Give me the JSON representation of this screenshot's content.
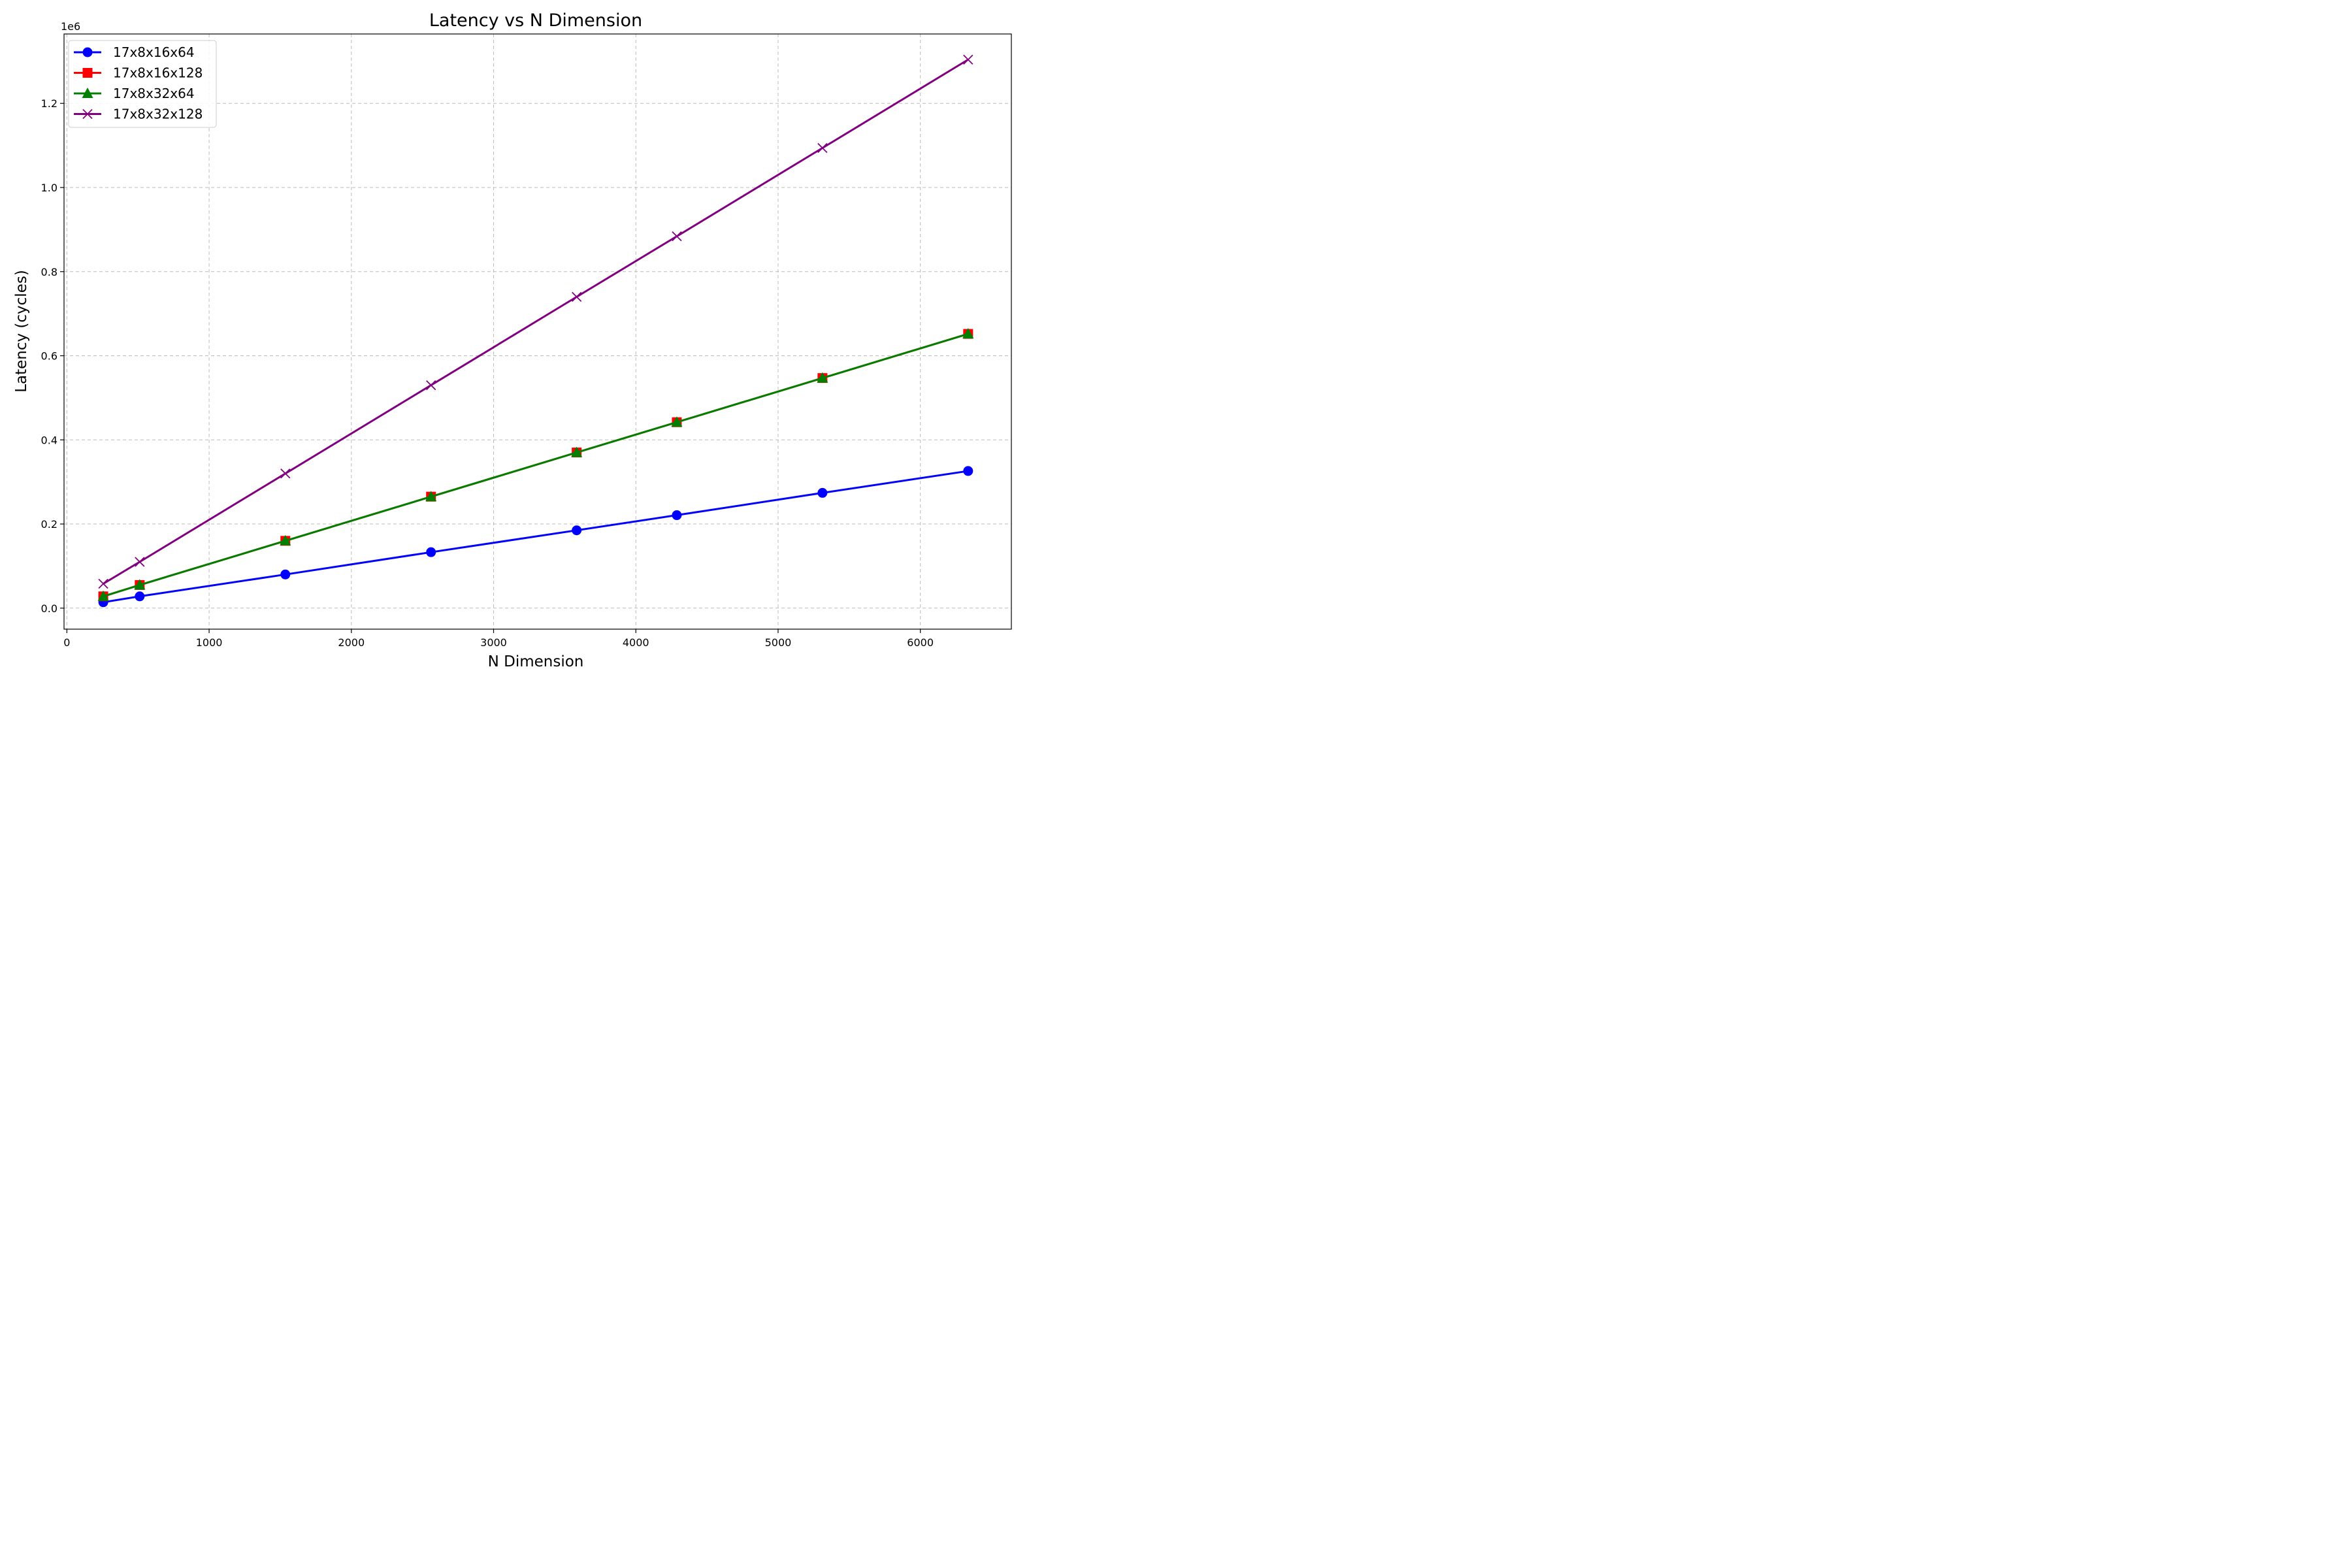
{
  "chart_data": {
    "type": "line",
    "title": "Latency vs N Dimension",
    "xlabel": "N Dimension",
    "ylabel": "Latency (cycles)",
    "y_offset_label": "1e6",
    "xlim": [
      -20,
      6640
    ],
    "ylim": [
      -50000,
      1365000
    ],
    "xticks": [
      0,
      1000,
      2000,
      3000,
      4000,
      5000,
      6000
    ],
    "xtick_labels": [
      "0",
      "1000",
      "2000",
      "3000",
      "4000",
      "5000",
      "6000"
    ],
    "yticks": [
      0,
      200000,
      400000,
      600000,
      800000,
      1000000,
      1200000
    ],
    "ytick_labels": [
      "0.0",
      "0.2",
      "0.4",
      "0.6",
      "0.8",
      "1.0",
      "1.2"
    ],
    "grid": true,
    "legend_position": "top-left",
    "x": [
      256,
      512,
      1536,
      2560,
      3584,
      4288,
      5312,
      6336
    ],
    "series": [
      {
        "name": "17x8x16x64",
        "color": "#0000ff",
        "marker": "circle",
        "values": [
          14000,
          28000,
          80000,
          133000,
          185000,
          221000,
          274000,
          326000
        ]
      },
      {
        "name": "17x8x16x128",
        "color": "#ff0000",
        "marker": "square",
        "values": [
          28000,
          55000,
          160000,
          265000,
          370000,
          442000,
          547000,
          652000
        ]
      },
      {
        "name": "17x8x32x64",
        "color": "#008000",
        "marker": "triangle",
        "values": [
          28000,
          55000,
          160000,
          265000,
          370000,
          442000,
          547000,
          652000
        ]
      },
      {
        "name": "17x8x32x128",
        "color": "#800080",
        "marker": "x",
        "values": [
          58000,
          110000,
          320000,
          530000,
          740000,
          884000,
          1094000,
          1304000
        ]
      }
    ]
  }
}
